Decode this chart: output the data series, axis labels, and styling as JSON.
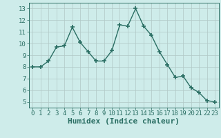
{
  "x": [
    0,
    1,
    2,
    3,
    4,
    5,
    6,
    7,
    8,
    9,
    10,
    11,
    12,
    13,
    14,
    15,
    16,
    17,
    18,
    19,
    20,
    21,
    22,
    23
  ],
  "y": [
    8.0,
    8.0,
    8.5,
    9.7,
    9.8,
    11.4,
    10.1,
    9.3,
    8.5,
    8.5,
    9.4,
    11.6,
    11.5,
    13.0,
    11.5,
    10.7,
    9.3,
    8.2,
    7.1,
    7.2,
    6.2,
    5.8,
    5.1,
    5.0
  ],
  "line_color": "#2a6e63",
  "marker": "+",
  "marker_size": 5,
  "background_color": "#ceecea",
  "grid_color": "#b0c8c6",
  "xlabel": "Humidex (Indice chaleur)",
  "ylim": [
    4.5,
    13.5
  ],
  "xlim": [
    -0.5,
    23.5
  ],
  "yticks": [
    5,
    6,
    7,
    8,
    9,
    10,
    11,
    12,
    13
  ],
  "xticks": [
    0,
    1,
    2,
    3,
    4,
    5,
    6,
    7,
    8,
    9,
    10,
    11,
    12,
    13,
    14,
    15,
    16,
    17,
    18,
    19,
    20,
    21,
    22,
    23
  ],
  "xlabel_fontsize": 8,
  "tick_fontsize": 6.5,
  "line_width": 1.0
}
